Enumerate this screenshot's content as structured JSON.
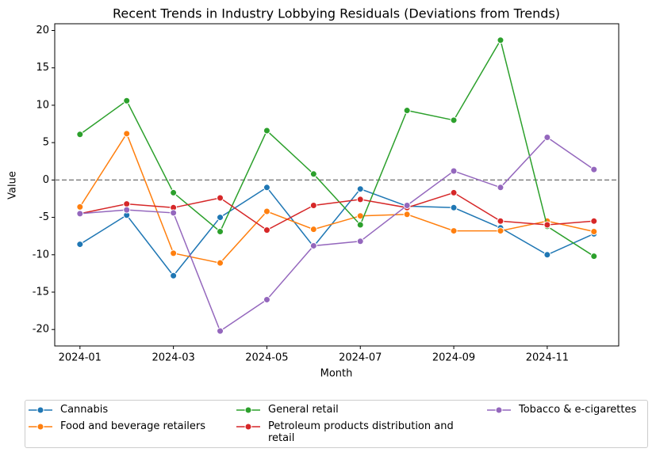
{
  "chart_data": {
    "type": "line",
    "title": "Recent Trends in Industry Lobbying Residuals (Deviations from Trends)",
    "x_label": "Month",
    "y_label": "Value",
    "x": [
      "2024-01",
      "2024-02",
      "2024-03",
      "2024-04",
      "2024-05",
      "2024-06",
      "2024-07",
      "2024-08",
      "2024-09",
      "2024-10",
      "2024-11",
      "2024-12"
    ],
    "xticks": [
      "2024-01",
      "2024-03",
      "2024-05",
      "2024-07",
      "2024-09",
      "2024-11"
    ],
    "ylim": [
      -22.2,
      20.9
    ],
    "yticks": [
      -20,
      -15,
      -10,
      -5,
      0,
      5,
      10,
      15,
      20
    ],
    "hline": 0,
    "legend": "bottom",
    "series": [
      {
        "name": "Cannabis",
        "color": "#1f77b4",
        "values": [
          -8.6,
          -4.7,
          -12.8,
          -5.0,
          -1.0,
          -8.9,
          -1.2,
          -3.5,
          -3.7,
          -6.4,
          -10.0,
          -7.2
        ]
      },
      {
        "name": "Food and beverage retailers",
        "color": "#ff7f0e",
        "values": [
          -3.6,
          6.2,
          -9.8,
          -11.1,
          -4.2,
          -6.6,
          -4.8,
          -4.6,
          -6.8,
          -6.8,
          -5.5,
          -6.9
        ]
      },
      {
        "name": "General retail",
        "color": "#2ca02c",
        "values": [
          6.1,
          10.6,
          -1.7,
          -6.9,
          6.6,
          0.8,
          -6.0,
          9.3,
          8.0,
          18.7,
          -6.2,
          -10.2
        ]
      },
      {
        "name": "Petroleum products distribution and retail",
        "color": "#d62728",
        "values": [
          -4.5,
          -3.2,
          -3.7,
          -2.4,
          -6.7,
          -3.4,
          -2.6,
          -3.7,
          -1.7,
          -5.5,
          -6.0,
          -5.5
        ]
      },
      {
        "name": "Tobacco & e-cigarettes",
        "color": "#9467bd",
        "values": [
          -4.5,
          -4.0,
          -4.4,
          -20.2,
          -16.0,
          -8.8,
          -8.2,
          -3.4,
          1.2,
          -1.0,
          5.7,
          1.4
        ]
      }
    ]
  }
}
